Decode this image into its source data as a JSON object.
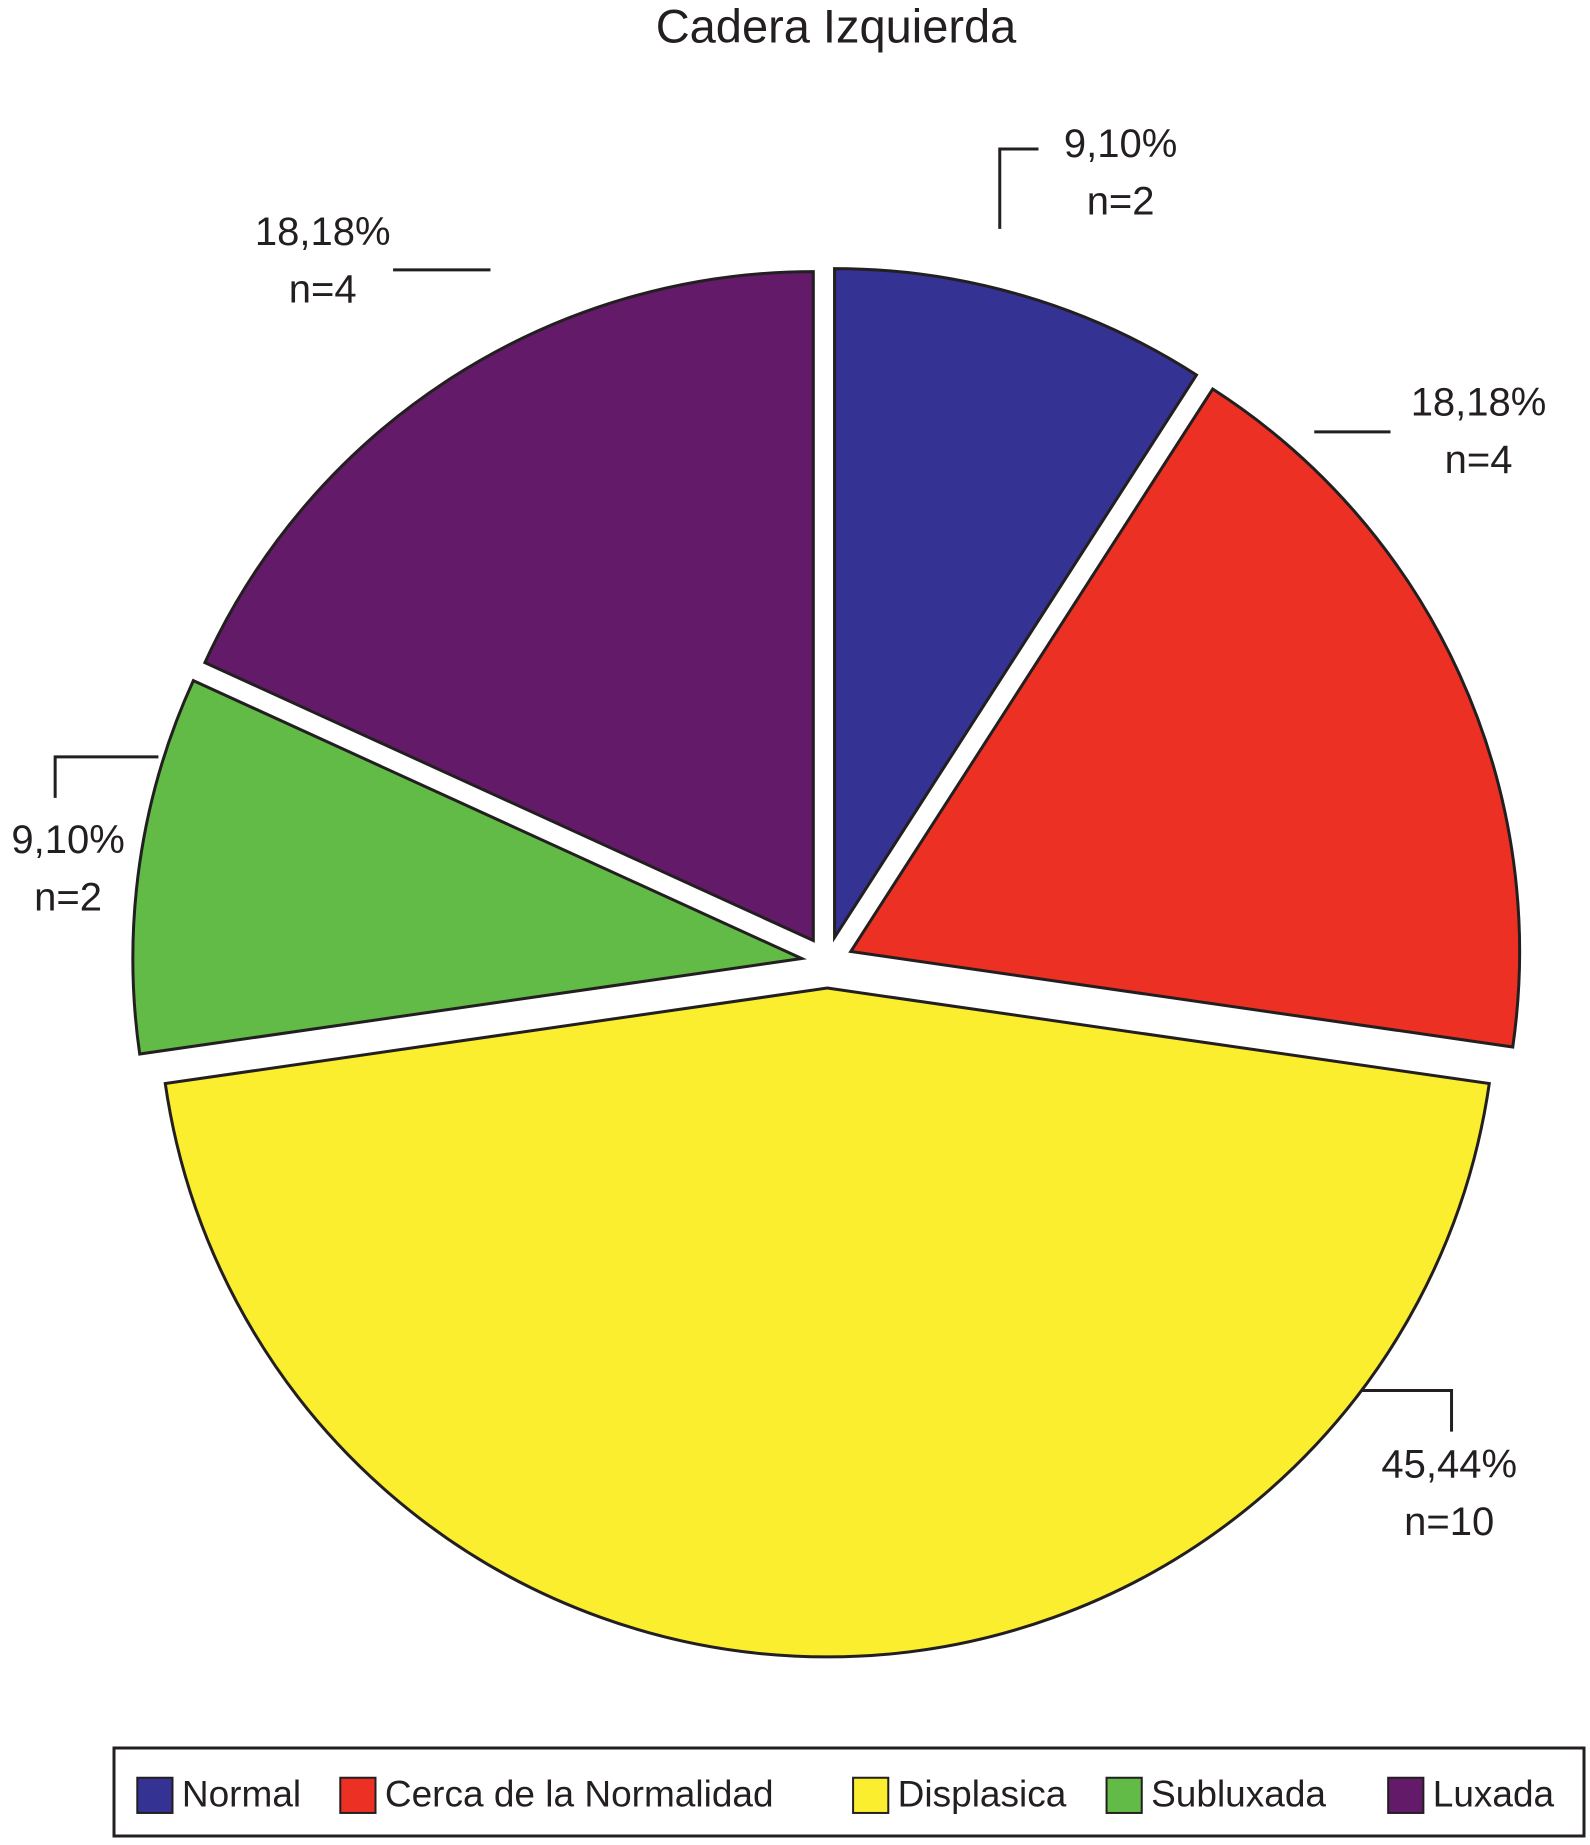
{
  "chart_data": {
    "type": "pie",
    "title": "Cadera Izquierda",
    "categories": [
      "Normal",
      "Cerca de la Normalidad",
      "Displasica",
      "Subluxada",
      "Luxada"
    ],
    "values": [
      9.1,
      18.18,
      45.44,
      9.1,
      18.18
    ],
    "value_labels": [
      "9,10%",
      "18,18%",
      "45,44%",
      "9,10%",
      "18,18%"
    ],
    "count_labels": [
      "n=2",
      "n=4",
      "n=10",
      "n=2",
      "n=4"
    ],
    "colors": [
      "#343293",
      "#ec3024",
      "#fbee2f",
      "#62bb47",
      "#631a69"
    ],
    "legend": "bottom"
  }
}
